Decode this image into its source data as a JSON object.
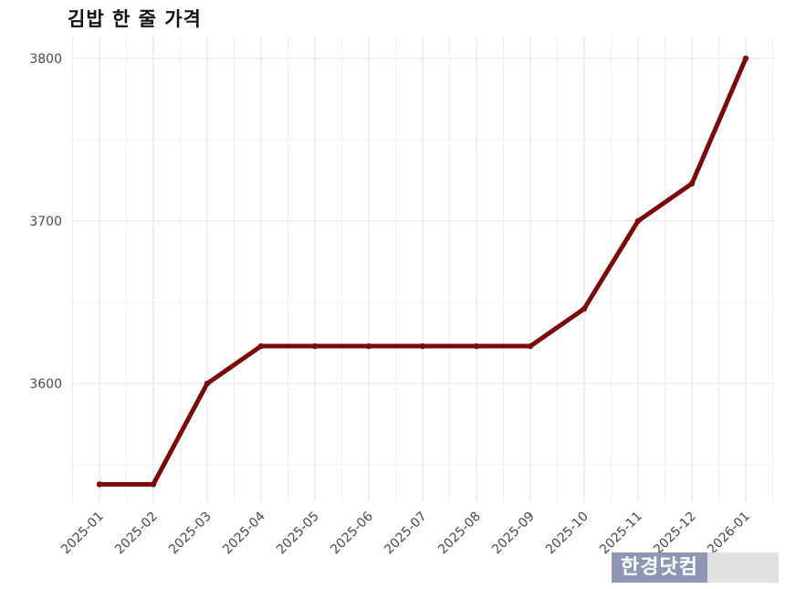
{
  "chart_data": {
    "type": "line",
    "title": "김밥 한 줄 가격",
    "x": [
      "2025-01",
      "2025-02",
      "2025-03",
      "2025-04",
      "2025-05",
      "2025-06",
      "2025-07",
      "2025-08",
      "2025-09",
      "2025-10",
      "2025-11",
      "2025-12",
      "2026-01"
    ],
    "series": [
      {
        "values": [
          3538,
          3538,
          3600,
          3623,
          3623,
          3623,
          3623,
          3623,
          3623,
          3646,
          3700,
          3723,
          3800
        ]
      }
    ],
    "y_ticks": [
      3600,
      3700,
      3800
    ],
    "ylim": [
      3532,
      3808
    ],
    "grid": true,
    "line_color": "#7a0a0a"
  },
  "watermark": {
    "text": "한경닷컴"
  }
}
